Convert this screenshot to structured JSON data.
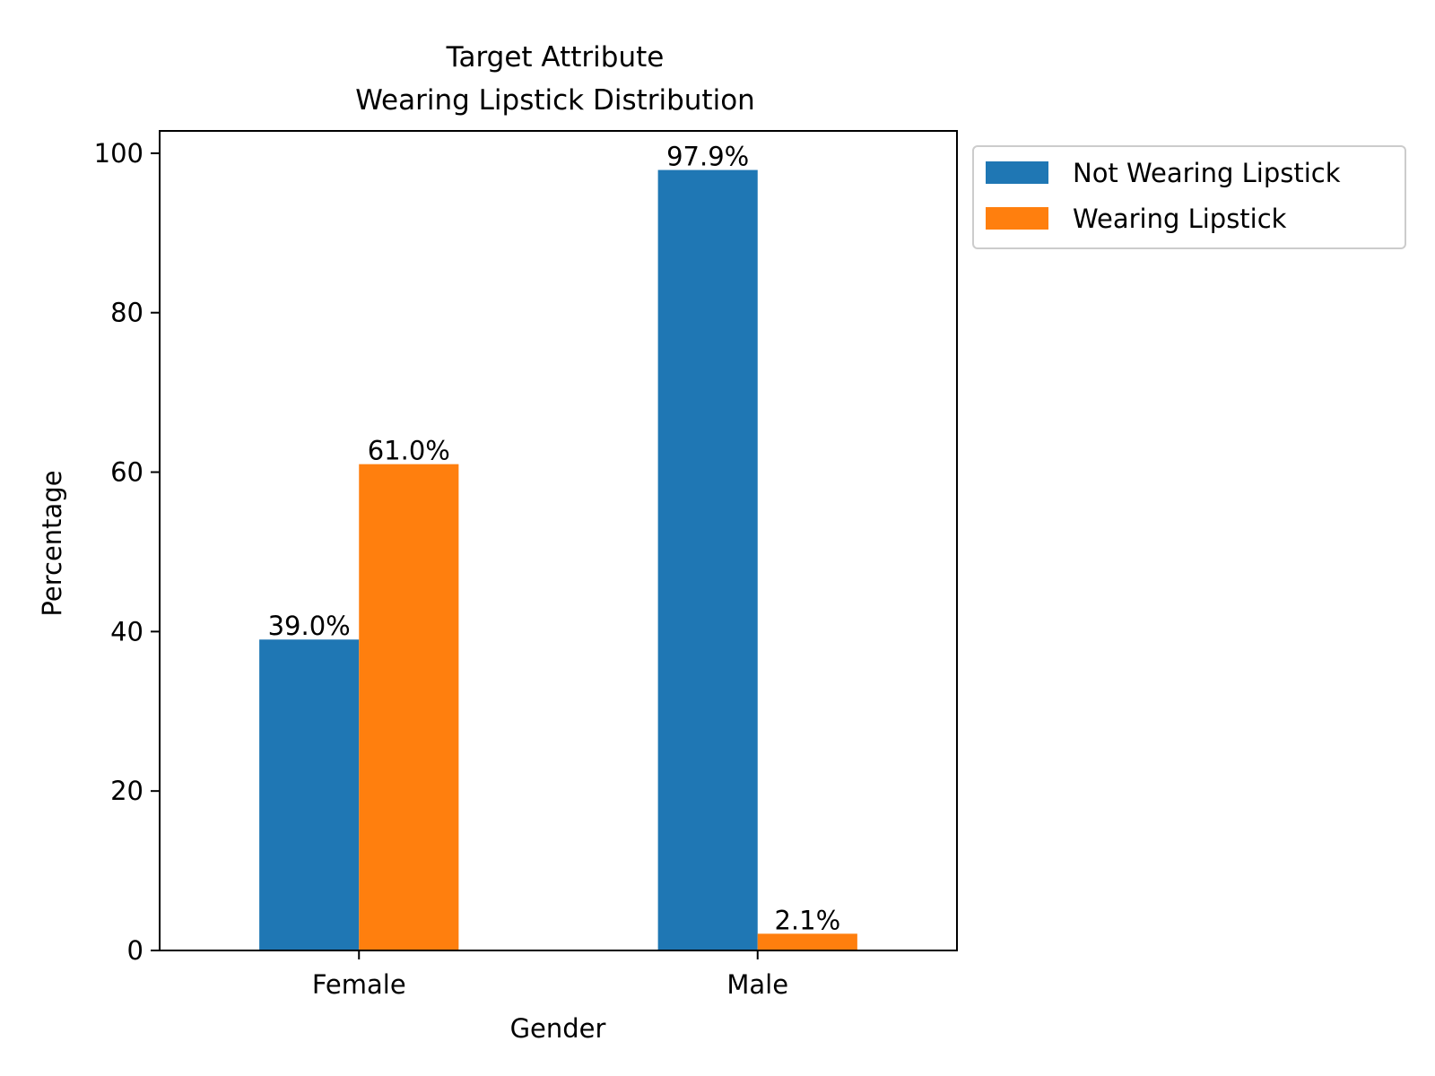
{
  "chart_data": {
    "type": "bar",
    "title_lines": [
      "Target Attribute",
      "Wearing Lipstick Distribution"
    ],
    "xlabel": "Gender",
    "ylabel": "Percentage",
    "categories": [
      "Female",
      "Male"
    ],
    "series": [
      {
        "name": "Not Wearing Lipstick",
        "color": "#1f77b4",
        "values": [
          39.0,
          97.9
        ],
        "labels": [
          "39.0%",
          "97.9%"
        ]
      },
      {
        "name": "Wearing Lipstick",
        "color": "#ff7f0e",
        "values": [
          61.0,
          2.1
        ],
        "labels": [
          "61.0%",
          "2.1%"
        ]
      }
    ],
    "ylim": [
      0,
      102.8
    ],
    "yticks": [
      0,
      20,
      40,
      60,
      80,
      100
    ],
    "grid": false,
    "legend_position": "outside-upper-right"
  }
}
